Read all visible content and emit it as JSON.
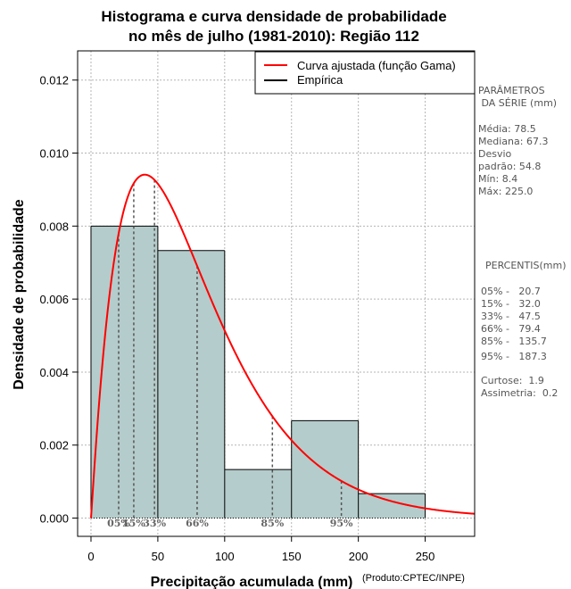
{
  "chart_data": {
    "type": "histogram",
    "title": [
      "Histograma e curva densidade de probabilidade",
      "no mês de julho (1981-2010): Região 112"
    ],
    "xlabel": "Precipitação acumulada (mm)",
    "ylabel": "Densidade de probabilidade",
    "credit": "(Produto:CPTEC/INPE)",
    "xlim": [
      -10,
      287
    ],
    "ylim": [
      -0.0005,
      0.0128
    ],
    "x_ticks": [
      0,
      50,
      100,
      150,
      200,
      250
    ],
    "y_ticks": [
      0.0,
      0.002,
      0.004,
      0.006,
      0.008,
      0.01,
      0.012
    ],
    "y_tick_labels": [
      "0.000",
      "0.002",
      "0.004",
      "0.006",
      "0.008",
      "0.010",
      "0.012"
    ],
    "grid": true,
    "bins": [
      {
        "from": 0,
        "to": 50,
        "density": 0.008
      },
      {
        "from": 50,
        "to": 100,
        "density": 0.00733
      },
      {
        "from": 100,
        "to": 150,
        "density": 0.00133
      },
      {
        "from": 150,
        "to": 200,
        "density": 0.00267
      },
      {
        "from": 200,
        "to": 250,
        "density": 0.00067
      }
    ],
    "fitted_curve": {
      "name": "Curva ajustada (função Gama)",
      "distribution": "gamma",
      "shape": 2.05,
      "scale": 38.3,
      "color": "#ff0000"
    },
    "legend": [
      {
        "label": "Curva ajustada (função Gama)",
        "color": "#ff0000"
      },
      {
        "label": "Empírica",
        "color": "#000000"
      }
    ],
    "legend_position": "top-right",
    "percentile_markers": [
      {
        "label": "05%",
        "x": 20.7
      },
      {
        "label": "15%",
        "x": 32.0
      },
      {
        "label": "33%",
        "x": 47.5
      },
      {
        "label": "66%",
        "x": 79.4
      },
      {
        "label": "85%",
        "x": 135.7
      },
      {
        "label": "95%",
        "x": 187.3
      }
    ],
    "bar_color": "#b4cccb"
  },
  "side_panel": {
    "params_title": [
      "PARÂMETROS",
      " DA SÉRIE (mm)"
    ],
    "params": [
      "Média:  78.5",
      "Mediana:  67.3",
      "Desvio",
      "padrão:  54.8",
      "Mín:  8.4",
      "Máx:  225.0"
    ],
    "percentis_title": "PERCENTIS(mm)",
    "percentis": [
      "05% -   20.7",
      "15% -   32.0",
      "33% -   47.5",
      "66% -   79.4",
      "85% -   135.7",
      "95% -   187.3"
    ],
    "stats": [
      "Curtose:  1.9",
      "Assimetria:  0.2"
    ]
  }
}
